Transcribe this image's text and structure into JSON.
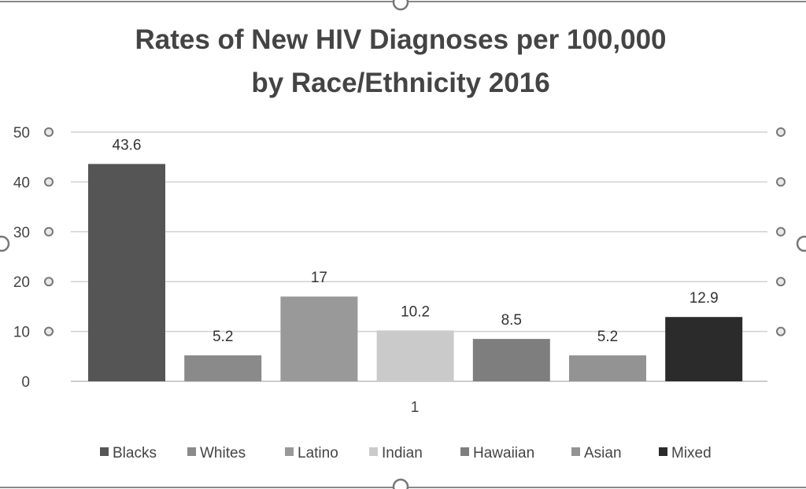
{
  "chart_data": {
    "type": "bar",
    "title": "Rates of New HIV Diagnoses per 100,000\nby Race/Ethnicity 2016",
    "title_lines": [
      "Rates of New HIV Diagnoses per 100,000",
      "by Race/Ethnicity 2016"
    ],
    "categories": [
      "1"
    ],
    "series": [
      {
        "name": "Blacks",
        "values": [
          43.6
        ],
        "color": "#555555",
        "label": "43.6"
      },
      {
        "name": "Whites",
        "values": [
          5.2
        ],
        "color": "#8a8a8a",
        "label": "5.2"
      },
      {
        "name": "Latino",
        "values": [
          17
        ],
        "color": "#999999",
        "label": "17"
      },
      {
        "name": "Indian",
        "values": [
          10.2
        ],
        "color": "#cacaca",
        "label": "10.2"
      },
      {
        "name": "Hawaiian",
        "values": [
          8.5
        ],
        "color": "#7e7e7e",
        "label": "8.5"
      },
      {
        "name": "Asian",
        "values": [
          5.2
        ],
        "color": "#939393",
        "label": "5.2"
      },
      {
        "name": "Mixed",
        "values": [
          12.9
        ],
        "color": "#2b2b2b",
        "label": "12.9"
      }
    ],
    "xlabel": "",
    "ylabel": "",
    "ylim": [
      0,
      50
    ],
    "yticks": [
      "0",
      "10",
      "20",
      "30",
      "40",
      "50"
    ],
    "grid": true,
    "legend": "bottom"
  }
}
